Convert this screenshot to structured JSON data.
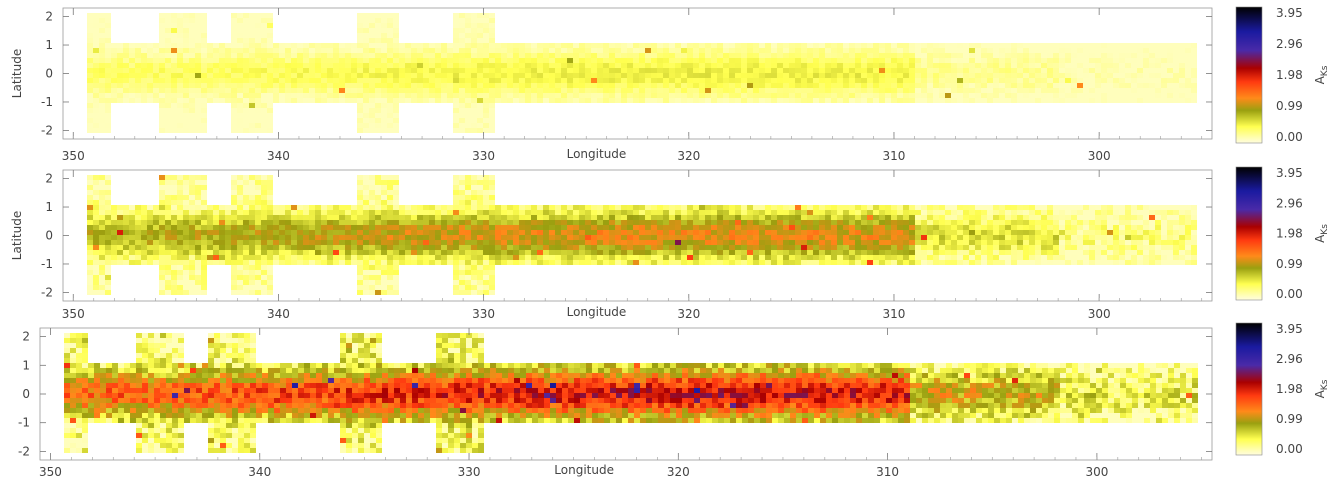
{
  "chart_data": [
    {
      "type": "heatmap",
      "panel": 1,
      "xlabel": "Longitude",
      "ylabel": "Latitude",
      "xlim": [
        350.5,
        294.5
      ],
      "ylim": [
        -2.3,
        2.3
      ],
      "x_ticks": [
        "350",
        "340",
        "330",
        "320",
        "310",
        "300"
      ],
      "y_ticks": [
        "2",
        "1",
        "0",
        "-1",
        "-2"
      ],
      "colorbar": {
        "label": "A",
        "label_sub": "Ks",
        "ticks": [
          "3.95",
          "2.96",
          "1.98",
          "0.99",
          "0.00"
        ]
      },
      "extinction_level": 0.2
    },
    {
      "type": "heatmap",
      "panel": 2,
      "xlabel": "Longitude",
      "ylabel": "Latitude",
      "xlim": [
        350.5,
        294.5
      ],
      "ylim": [
        -2.3,
        2.3
      ],
      "x_ticks": [
        "350",
        "340",
        "330",
        "320",
        "310",
        "300"
      ],
      "y_ticks": [
        "2",
        "1",
        "0",
        "-1",
        "-2"
      ],
      "colorbar": {
        "label": "A",
        "label_sub": "Ks",
        "ticks": [
          "3.95",
          "2.96",
          "1.98",
          "0.99",
          "0.00"
        ]
      },
      "extinction_level": 0.45
    },
    {
      "type": "heatmap",
      "panel": 3,
      "xlabel": "Longitude",
      "ylabel": "Latitude",
      "xlim": [
        350.5,
        294.5
      ],
      "ylim": [
        -2.3,
        2.3
      ],
      "x_ticks": [
        "350",
        "340",
        "330",
        "320",
        "310",
        "300"
      ],
      "y_ticks": [
        "2",
        "1",
        "0",
        "-1",
        "-2"
      ],
      "colorbar": {
        "label": "A",
        "label_sub": "Ks",
        "ticks": [
          "3.95",
          "2.96",
          "1.98",
          "0.99",
          "0.00"
        ]
      },
      "extinction_level": 0.75
    }
  ],
  "survey_footprint": {
    "band_lat": [
      -1.05,
      1.05
    ],
    "band_lon": [
      349.3,
      295.2
    ],
    "tiles": [
      {
        "lon": [
          349.4,
          348.3
        ],
        "lat": [
          -2.1,
          2.1
        ]
      },
      {
        "lon": [
          345.8,
          343.6
        ],
        "lat": [
          -2.1,
          2.1
        ]
      },
      {
        "lon": [
          342.4,
          340.3
        ],
        "lat": [
          -2.1,
          2.1
        ]
      },
      {
        "lon": [
          336.3,
          334.1
        ],
        "lat": [
          -2.1,
          2.1
        ]
      },
      {
        "lon": [
          331.5,
          329.3
        ],
        "lat": [
          -2.1,
          2.1
        ]
      }
    ]
  },
  "colors": {
    "colormap": [
      "#fffde0",
      "#ffff50",
      "#9aa010",
      "#ff8a1a",
      "#ff3a10",
      "#aa0000",
      "#4a2aa8",
      "#1a1aa0",
      "#000000"
    ]
  }
}
